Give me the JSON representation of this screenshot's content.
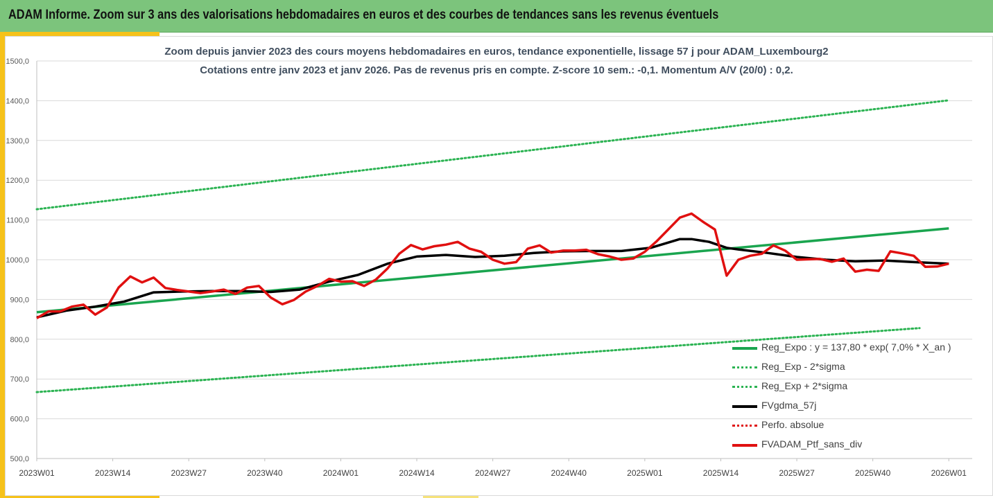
{
  "banner": {
    "title": "ADAM Informe. Zoom sur 3 ans des valorisations hebdomadaires en euros et des courbes de tendances sans les revenus éventuels"
  },
  "colors": {
    "banner": "#7cc47c",
    "accent": "#f6c21a",
    "trend": "#1aa54f",
    "sigma": "#2bb352",
    "smooth": "#000000",
    "perf": "#e01010",
    "ptf": "#e01010"
  },
  "chart_data": {
    "type": "line",
    "title": "Zoom depuis janvier 2023 des cours moyens hebdomadaires  en euros, tendance exponentielle, lissage 57 j pour ADAM_Luxembourg2",
    "subtitle": "Cotations entre janv 2023 et janv 2026. Pas de revenus pris en compte. Z-score 10 sem.: -0,1. Momentum  A/V (20/0) : 0,2.",
    "xlabel": "",
    "ylabel": "",
    "x_range": [
      0,
      160
    ],
    "ylim": [
      500,
      1500
    ],
    "yticks": [
      "500,0",
      "600,0",
      "700,0",
      "800,0",
      "900,0",
      "1000,0",
      "1100,0",
      "1200,0",
      "1300,0",
      "1400,0",
      "1500,0"
    ],
    "xticks": [
      "2023W01",
      "2023W14",
      "2023W27",
      "2023W40",
      "2024W01",
      "2024W14",
      "2024W27",
      "2024W40",
      "2025W01",
      "2025W14",
      "2025W27",
      "2025W40",
      "2026W01"
    ],
    "grid": "horizontal",
    "legend_position": "bottom-right",
    "series": [
      {
        "name": "Reg_Expo : y = 137,80 * exp( 7,0% *  X_an )",
        "style": "solid-thick",
        "color": "#1aa54f",
        "x": [
          0,
          156
        ],
        "values": [
          868,
          1079
        ]
      },
      {
        "name": "Reg_Exp - 2*sigma",
        "style": "dotted",
        "color": "#2bb352",
        "x": [
          0,
          151
        ],
        "values": [
          667,
          828
        ]
      },
      {
        "name": "Reg_Exp + 2*sigma",
        "style": "dotted",
        "color": "#2bb352",
        "x": [
          0,
          156
        ],
        "values": [
          1127,
          1401
        ]
      },
      {
        "name": "FVgdma_57j",
        "style": "solid-thick",
        "color": "#000000",
        "x": [
          0,
          5,
          10,
          15,
          20,
          25,
          30,
          35,
          40,
          45,
          50,
          55,
          60,
          65,
          70,
          75,
          80,
          85,
          90,
          95,
          100,
          105,
          110,
          112,
          115,
          118,
          120,
          125,
          130,
          135,
          140,
          145,
          150,
          156
        ],
        "values": [
          855,
          872,
          882,
          895,
          918,
          920,
          921,
          921,
          919,
          925,
          945,
          962,
          990,
          1008,
          1012,
          1007,
          1010,
          1017,
          1021,
          1022,
          1022,
          1030,
          1052,
          1052,
          1045,
          1030,
          1026,
          1017,
          1007,
          1000,
          996,
          998,
          994,
          990
        ]
      },
      {
        "name": "Perfo. absolue",
        "style": "dotted",
        "color": "#e01010",
        "x": [],
        "values": []
      },
      {
        "name": "FVADAM_Ptf_sans_div",
        "style": "solid-thick",
        "color": "#e01010",
        "x": [
          0,
          2,
          4,
          6,
          8,
          10,
          12,
          14,
          16,
          18,
          20,
          22,
          24,
          26,
          28,
          30,
          32,
          34,
          36,
          38,
          40,
          42,
          44,
          46,
          48,
          50,
          52,
          54,
          56,
          58,
          60,
          62,
          64,
          66,
          68,
          70,
          72,
          74,
          76,
          78,
          80,
          82,
          84,
          86,
          88,
          90,
          92,
          94,
          96,
          98,
          100,
          102,
          104,
          106,
          108,
          110,
          112,
          114,
          116,
          118,
          120,
          122,
          124,
          126,
          128,
          130,
          132,
          134,
          136,
          138,
          140,
          142,
          144,
          146,
          148,
          150,
          152,
          154,
          156
        ],
        "values": [
          853,
          870,
          870,
          882,
          887,
          862,
          880,
          930,
          958,
          943,
          955,
          929,
          924,
          920,
          916,
          920,
          925,
          914,
          930,
          934,
          905,
          888,
          899,
          920,
          934,
          952,
          945,
          946,
          934,
          950,
          978,
          1015,
          1037,
          1026,
          1034,
          1038,
          1045,
          1028,
          1020,
          1000,
          990,
          994,
          1028,
          1036,
          1018,
          1023,
          1023,
          1025,
          1014,
          1008,
          1000,
          1003,
          1020,
          1046,
          1076,
          1106,
          1116,
          1095,
          1076,
          960,
          1000,
          1010,
          1015,
          1036,
          1023,
          1000,
          1001,
          1002,
          995,
          1003,
          970,
          975,
          972,
          1021,
          1016,
          1010,
          982,
          983,
          990
        ]
      }
    ]
  },
  "legend": {
    "items": [
      {
        "label": "Reg_Expo : y = 137,80 * exp( 7,0% *  X_an )"
      },
      {
        "label": "Reg_Exp - 2*sigma"
      },
      {
        "label": "Reg_Exp + 2*sigma"
      },
      {
        "label": "FVgdma_57j"
      },
      {
        "label": "Perfo. absolue"
      },
      {
        "label": "FVADAM_Ptf_sans_div"
      }
    ]
  }
}
